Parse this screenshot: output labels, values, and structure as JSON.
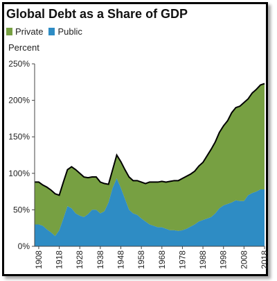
{
  "chart_data": {
    "type": "area",
    "title": "Global Debt as a Share of GDP",
    "ylabel": "Percent",
    "xlabel": "",
    "ylim": [
      0,
      250
    ],
    "xlim": [
      1906,
      2018
    ],
    "stacked": true,
    "y_ticks": [
      "0%",
      "50%",
      "100%",
      "150%",
      "200%",
      "250%"
    ],
    "y_tick_values": [
      0,
      50,
      100,
      150,
      200,
      250
    ],
    "x_ticks": [
      "1908",
      "1918",
      "1928",
      "1938",
      "1948",
      "1958",
      "1968",
      "1978",
      "1988",
      "1998",
      "2008",
      "2018"
    ],
    "x_tick_values": [
      1908,
      1918,
      1928,
      1938,
      1948,
      1958,
      1968,
      1978,
      1988,
      1998,
      2008,
      2018
    ],
    "grid": false,
    "legend_position": "top-left",
    "series": [
      {
        "name": "Private",
        "color": "#77a042",
        "years": [
          1906,
          1908,
          1910,
          1912,
          1914,
          1916,
          1918,
          1920,
          1922,
          1924,
          1926,
          1928,
          1930,
          1932,
          1934,
          1936,
          1938,
          1940,
          1942,
          1944,
          1946,
          1948,
          1950,
          1952,
          1954,
          1956,
          1958,
          1960,
          1962,
          1964,
          1966,
          1968,
          1970,
          1972,
          1974,
          1976,
          1978,
          1980,
          1982,
          1984,
          1986,
          1988,
          1990,
          1992,
          1994,
          1996,
          1998,
          2000,
          2002,
          2004,
          2006,
          2008,
          2010,
          2012,
          2014,
          2016,
          2018
        ],
        "values": [
          58,
          58,
          56,
          58,
          58,
          58,
          48,
          50,
          50,
          57,
          60,
          58,
          55,
          50,
          45,
          45,
          43,
          38,
          25,
          25,
          32,
          36,
          40,
          45,
          45,
          47,
          50,
          52,
          58,
          60,
          62,
          63,
          64,
          67,
          68,
          69,
          71,
          72,
          72,
          73,
          76,
          79,
          86,
          93,
          98,
          104,
          109,
          114,
          123,
          127,
          130,
          135,
          132,
          137,
          140,
          143,
          145
        ]
      },
      {
        "name": "Public",
        "color": "#2e8cc4",
        "years": [
          1906,
          1908,
          1910,
          1912,
          1914,
          1916,
          1918,
          1920,
          1922,
          1924,
          1926,
          1928,
          1930,
          1932,
          1934,
          1936,
          1938,
          1940,
          1942,
          1944,
          1946,
          1948,
          1950,
          1952,
          1954,
          1956,
          1958,
          1960,
          1962,
          1964,
          1966,
          1968,
          1970,
          1972,
          1974,
          1976,
          1978,
          1980,
          1982,
          1984,
          1986,
          1988,
          1990,
          1992,
          1994,
          1996,
          1998,
          2000,
          2002,
          2004,
          2006,
          2008,
          2010,
          2012,
          2014,
          2016,
          2018
        ],
        "values": [
          30,
          30,
          28,
          23,
          19,
          14,
          22,
          38,
          55,
          52,
          45,
          42,
          40,
          44,
          50,
          50,
          45,
          48,
          60,
          80,
          93,
          80,
          65,
          50,
          45,
          43,
          38,
          34,
          30,
          28,
          26,
          26,
          24,
          22,
          22,
          21,
          22,
          24,
          27,
          30,
          34,
          36,
          38,
          40,
          45,
          52,
          56,
          58,
          60,
          63,
          62,
          62,
          70,
          73,
          75,
          78,
          78
        ]
      }
    ]
  }
}
